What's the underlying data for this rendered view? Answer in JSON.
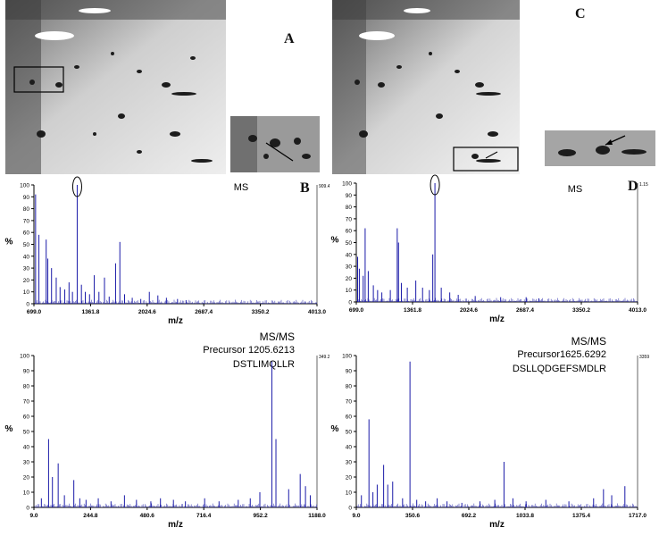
{
  "figure": {
    "panel_labels": {
      "A": "A",
      "B": "B",
      "C": "C",
      "D": "D"
    },
    "colors": {
      "spectrum": "#1a1aa8",
      "peak_label": "#7a1010",
      "axis": "#000000",
      "gel_dark": "#1c1c1c"
    },
    "icons": {
      "zoom_box": "zoom-box-icon",
      "arrow": "arrow-icon",
      "circle": "highlight-circle-icon"
    }
  },
  "chart_data": [
    {
      "id": "B_ms",
      "type": "line",
      "title": "MS",
      "xlabel": "m/z",
      "ylabel": "%",
      "xlim": [
        699.0,
        4013.0
      ],
      "ylim": [
        0,
        100
      ],
      "xticks": [
        "699.0",
        "1361.8",
        "2024.6",
        "2687.4",
        "3350.2",
        "4013.0"
      ],
      "yticks": [
        "0",
        "10",
        "20",
        "30",
        "40",
        "50",
        "60",
        "70",
        "80",
        "90",
        "100"
      ],
      "corner_value": "909.4",
      "circled_peak": 1205.6,
      "peaks": [
        {
          "x": 718.3,
          "y": 92
        },
        {
          "x": 757.4,
          "y": 58
        },
        {
          "x": 842.4,
          "y": 54
        },
        {
          "x": 861.4,
          "y": 38
        },
        {
          "x": 905.1,
          "y": 30
        },
        {
          "x": 960.0,
          "y": 22
        },
        {
          "x": 1005.0,
          "y": 14
        },
        {
          "x": 1060.0,
          "y": 12
        },
        {
          "x": 1110.0,
          "y": 18
        },
        {
          "x": 1150.0,
          "y": 10
        },
        {
          "x": 1205.6,
          "y": 100
        },
        {
          "x": 1255.0,
          "y": 16
        },
        {
          "x": 1300.0,
          "y": 10
        },
        {
          "x": 1350.0,
          "y": 8
        },
        {
          "x": 1405.0,
          "y": 24
        },
        {
          "x": 1460.0,
          "y": 10
        },
        {
          "x": 1525.0,
          "y": 22
        },
        {
          "x": 1580.0,
          "y": 6
        },
        {
          "x": 1655.0,
          "y": 34
        },
        {
          "x": 1705.0,
          "y": 52
        },
        {
          "x": 1760.0,
          "y": 8
        },
        {
          "x": 1850.0,
          "y": 5
        },
        {
          "x": 1950.0,
          "y": 4
        },
        {
          "x": 2050.0,
          "y": 10
        },
        {
          "x": 2150.0,
          "y": 7
        },
        {
          "x": 2250.0,
          "y": 5
        },
        {
          "x": 2380.0,
          "y": 4
        },
        {
          "x": 2480.0,
          "y": 3
        }
      ]
    },
    {
      "id": "D_ms",
      "type": "line",
      "title": "MS",
      "xlabel": "m/z",
      "ylabel": "%",
      "xlim": [
        699.0,
        4013.0
      ],
      "ylim": [
        0,
        100
      ],
      "xticks": [
        "699.0",
        "1361.8",
        "2024.6",
        "2687.4",
        "3350.2",
        "4013.0"
      ],
      "yticks": [
        "0",
        "10",
        "20",
        "30",
        "40",
        "50",
        "60",
        "70",
        "80",
        "90",
        "100"
      ],
      "corner_value": "1.15",
      "circled_peak": 1625.6,
      "peaks": [
        {
          "x": 715.0,
          "y": 38
        },
        {
          "x": 735.0,
          "y": 28
        },
        {
          "x": 780.0,
          "y": 22
        },
        {
          "x": 803.3,
          "y": 62
        },
        {
          "x": 840.0,
          "y": 26
        },
        {
          "x": 900.0,
          "y": 14
        },
        {
          "x": 950.0,
          "y": 10
        },
        {
          "x": 1000.0,
          "y": 8
        },
        {
          "x": 1100.0,
          "y": 10
        },
        {
          "x": 1181.3,
          "y": 62
        },
        {
          "x": 1196.6,
          "y": 50
        },
        {
          "x": 1230.0,
          "y": 16
        },
        {
          "x": 1300.0,
          "y": 12
        },
        {
          "x": 1400.0,
          "y": 18
        },
        {
          "x": 1480.0,
          "y": 12
        },
        {
          "x": 1560.0,
          "y": 10
        },
        {
          "x": 1600.0,
          "y": 40
        },
        {
          "x": 1625.6,
          "y": 100
        },
        {
          "x": 1700.0,
          "y": 12
        },
        {
          "x": 1800.0,
          "y": 8
        },
        {
          "x": 1900.0,
          "y": 6
        },
        {
          "x": 2100.0,
          "y": 5
        },
        {
          "x": 2400.0,
          "y": 4
        },
        {
          "x": 2700.0,
          "y": 4
        },
        {
          "x": 2850.0,
          "y": 3
        }
      ]
    },
    {
      "id": "B_msms",
      "type": "line",
      "title": "MS/MS",
      "subtitle": "Precursor 1205.6213",
      "sequence": "DSTLIMQLLR",
      "xlabel": "m/z",
      "ylabel": "%",
      "xlim": [
        9.0,
        1188.0
      ],
      "ylim": [
        0,
        100
      ],
      "xticks": [
        "9.0",
        "244.8",
        "480.6",
        "716.4",
        "952.2",
        "1188.0"
      ],
      "yticks": [
        "0",
        "10",
        "20",
        "30",
        "40",
        "50",
        "60",
        "70",
        "80",
        "90",
        "100"
      ],
      "corner_value": "349.2",
      "peaks": [
        {
          "x": 40.0,
          "y": 6
        },
        {
          "x": 70.0,
          "y": 45
        },
        {
          "x": 86.0,
          "y": 20
        },
        {
          "x": 110.0,
          "y": 29
        },
        {
          "x": 136.0,
          "y": 8
        },
        {
          "x": 175.1,
          "y": 18
        },
        {
          "x": 200.0,
          "y": 6
        },
        {
          "x": 226.0,
          "y": 5
        },
        {
          "x": 277.0,
          "y": 6
        },
        {
          "x": 330.0,
          "y": 4
        },
        {
          "x": 386.0,
          "y": 8
        },
        {
          "x": 436.0,
          "y": 5
        },
        {
          "x": 496.0,
          "y": 4
        },
        {
          "x": 536.0,
          "y": 6
        },
        {
          "x": 590.0,
          "y": 5
        },
        {
          "x": 640.0,
          "y": 4
        },
        {
          "x": 720.0,
          "y": 6
        },
        {
          "x": 780.0,
          "y": 4
        },
        {
          "x": 860.0,
          "y": 5
        },
        {
          "x": 910.0,
          "y": 6
        },
        {
          "x": 950.0,
          "y": 10
        },
        {
          "x": 1000.0,
          "y": 96
        },
        {
          "x": 1017.0,
          "y": 45
        },
        {
          "x": 1070.0,
          "y": 12
        },
        {
          "x": 1118.0,
          "y": 22
        },
        {
          "x": 1140.0,
          "y": 14
        },
        {
          "x": 1160.0,
          "y": 8
        }
      ]
    },
    {
      "id": "D_msms",
      "type": "line",
      "title": "MS/MS",
      "subtitle": "Precursor1625.6292",
      "sequence": "DSLLQDGEFSMDLR",
      "xlabel": "m/z",
      "ylabel": "%",
      "xlim": [
        9.0,
        1717.0
      ],
      "ylim": [
        0,
        100
      ],
      "xticks": [
        "9.0",
        "350.6",
        "692.2",
        "1033.8",
        "1375.4",
        "1717.0"
      ],
      "yticks": [
        "0",
        "10",
        "20",
        "30",
        "40",
        "50",
        "60",
        "70",
        "80",
        "90",
        "100"
      ],
      "corner_value": "3359",
      "peaks": [
        {
          "x": 40.0,
          "y": 8
        },
        {
          "x": 86.0,
          "y": 58
        },
        {
          "x": 110.0,
          "y": 10
        },
        {
          "x": 136.0,
          "y": 15
        },
        {
          "x": 175.0,
          "y": 28
        },
        {
          "x": 200.0,
          "y": 15
        },
        {
          "x": 230.0,
          "y": 17
        },
        {
          "x": 290.0,
          "y": 6
        },
        {
          "x": 335.0,
          "y": 96
        },
        {
          "x": 376.0,
          "y": 5
        },
        {
          "x": 430.0,
          "y": 4
        },
        {
          "x": 500.0,
          "y": 6
        },
        {
          "x": 560.0,
          "y": 4
        },
        {
          "x": 650.0,
          "y": 3
        },
        {
          "x": 760.0,
          "y": 4
        },
        {
          "x": 850.0,
          "y": 5
        },
        {
          "x": 906.0,
          "y": 30
        },
        {
          "x": 960.0,
          "y": 6
        },
        {
          "x": 1040.0,
          "y": 4
        },
        {
          "x": 1160.0,
          "y": 5
        },
        {
          "x": 1300.0,
          "y": 4
        },
        {
          "x": 1450.0,
          "y": 6
        },
        {
          "x": 1510.0,
          "y": 12
        },
        {
          "x": 1560.0,
          "y": 8
        },
        {
          "x": 1640.0,
          "y": 14
        }
      ]
    }
  ]
}
